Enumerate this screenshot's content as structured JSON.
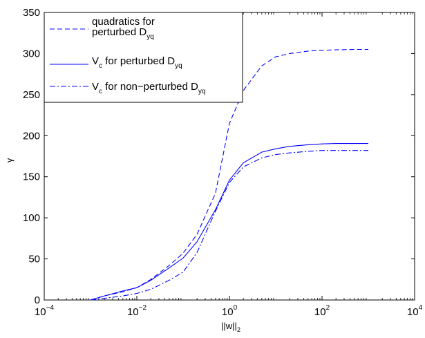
{
  "chart_data": {
    "type": "line",
    "xscale": "log",
    "xlim": [
      0.0001,
      10000
    ],
    "ylim": [
      0,
      350
    ],
    "xlabel": "||w||",
    "xlabel_subscript": "2",
    "ylabel": "γ",
    "x_ticks": [
      {
        "base": "10",
        "exp": "−4",
        "value": 0.0001
      },
      {
        "base": "10",
        "exp": "−2",
        "value": 0.01
      },
      {
        "base": "10",
        "exp": "0",
        "value": 1
      },
      {
        "base": "10",
        "exp": "2",
        "value": 100
      },
      {
        "base": "10",
        "exp": "4",
        "value": 10000
      }
    ],
    "y_ticks": [
      "0",
      "50",
      "100",
      "150",
      "200",
      "250",
      "300",
      "350"
    ],
    "legend_position": "top-left",
    "series": [
      {
        "name": "quadratics for perturbed D_yq",
        "legend_lines": [
          {
            "text": "quadratics for",
            "sub": ""
          },
          {
            "text": "perturbed D",
            "sub": "yq"
          }
        ],
        "style": "dashed",
        "color": "#0000ff",
        "x": [
          0.001,
          0.002,
          0.005,
          0.01,
          0.02,
          0.05,
          0.1,
          0.2,
          0.5,
          1,
          2,
          5,
          10,
          20,
          50,
          100,
          200,
          500,
          1000
        ],
        "y": [
          0,
          5,
          10,
          15,
          25,
          42,
          57,
          80,
          130,
          215,
          255,
          285,
          296,
          300,
          303,
          304,
          304.5,
          305,
          305
        ]
      },
      {
        "name": "V_c for perturbed D_yq",
        "legend_lines": [
          {
            "text": "V",
            "sub": "c",
            "text2": " for perturbed D",
            "sub2": "yq"
          }
        ],
        "style": "solid",
        "color": "#0000ff",
        "x": [
          0.001,
          0.002,
          0.005,
          0.01,
          0.02,
          0.05,
          0.1,
          0.2,
          0.5,
          1,
          2,
          5,
          10,
          20,
          50,
          100,
          200,
          500,
          1000
        ],
        "y": [
          0,
          5,
          11,
          15,
          24,
          39,
          51,
          71,
          110,
          146,
          167,
          180,
          184,
          187,
          189,
          190,
          190.5,
          190.5,
          190.5
        ]
      },
      {
        "name": "V_c for non-perturbed D_yq",
        "legend_lines": [
          {
            "text": "V",
            "sub": "c",
            "text2": " for non−perturbed D",
            "sub2": "yq"
          }
        ],
        "style": "dashdot",
        "color": "#0000ff",
        "x": [
          0.001,
          0.002,
          0.005,
          0.01,
          0.02,
          0.05,
          0.1,
          0.2,
          0.5,
          1,
          2,
          5,
          10,
          20,
          50,
          100,
          200,
          500,
          1000
        ],
        "y": [
          0,
          2,
          5,
          8,
          13,
          24,
          34,
          58,
          108,
          143,
          162,
          173,
          177,
          179,
          181,
          182,
          182,
          182,
          182
        ]
      }
    ]
  }
}
